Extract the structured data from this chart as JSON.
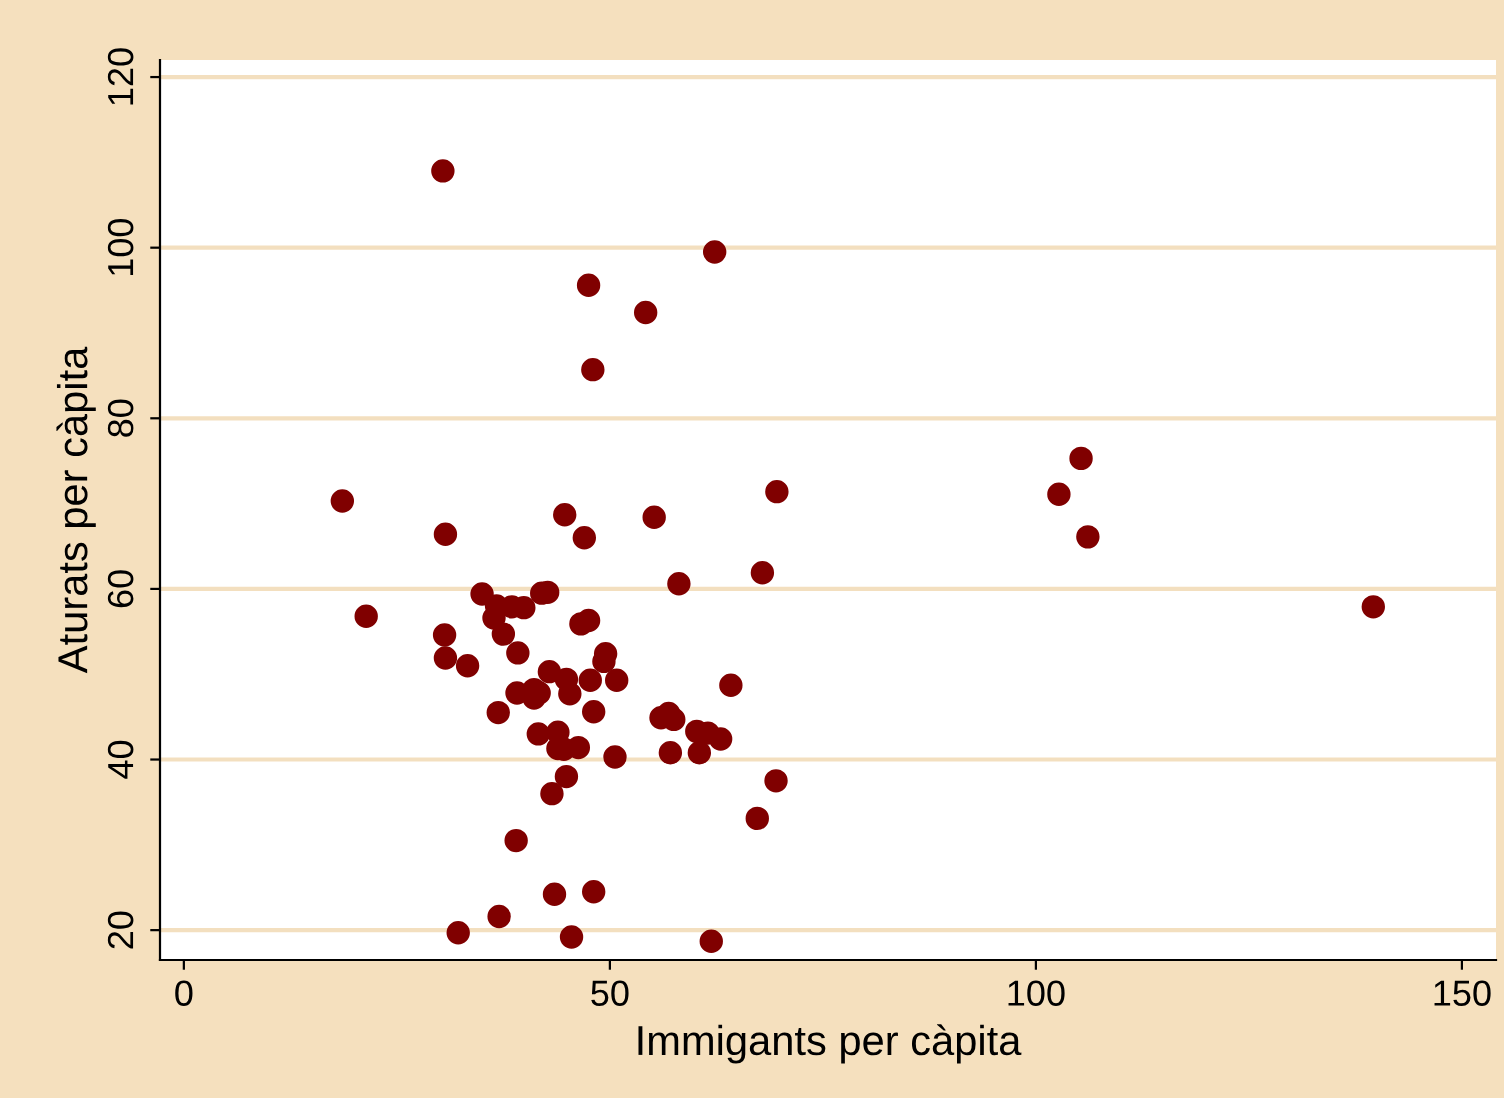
{
  "chart_data": {
    "type": "scatter",
    "xlabel": "Immigants per càpita",
    "ylabel": "Aturats per càpita",
    "x": [
      30.4,
      62.3,
      47.5,
      54.2,
      48.0,
      105.3,
      69.6,
      102.7,
      18.6,
      44.7,
      55.2,
      30.7,
      47.0,
      106.1,
      67.9,
      58.1,
      35.0,
      42.0,
      42.7,
      36.7,
      38.5,
      39.9,
      139.6,
      21.4,
      36.4,
      46.6,
      47.5,
      37.5,
      30.6,
      39.2,
      49.5,
      49.3,
      30.7,
      33.3,
      42.9,
      44.9,
      47.7,
      50.8,
      64.2,
      39.1,
      41.1,
      41.7,
      45.3,
      41.1,
      36.9,
      48.1,
      56.0,
      56.9,
      57.5,
      41.6,
      43.9,
      60.2,
      61.5,
      63.0,
      43.9,
      46.3,
      44.6,
      57.1,
      60.5,
      50.6,
      69.5,
      44.9,
      43.2,
      67.3,
      39.0,
      43.5,
      48.1,
      37.0,
      32.2,
      45.5,
      61.9
    ],
    "series": [
      {
        "color": "#800000",
        "values": [
          109,
          99.5,
          95.6,
          92.4,
          85.7,
          75.3,
          71.4,
          71.1,
          70.3,
          68.7,
          68.4,
          66.4,
          66.0,
          66.1,
          61.9,
          60.6,
          59.4,
          59.5,
          59.6,
          58.0,
          57.9,
          57.8,
          57.9,
          56.8,
          56.6,
          55.9,
          56.3,
          54.7,
          54.6,
          52.5,
          52.4,
          51.5,
          51.9,
          51.0,
          50.3,
          49.4,
          49.3,
          49.3,
          48.7,
          47.8,
          48.2,
          47.8,
          47.7,
          47.2,
          45.5,
          45.6,
          44.9,
          45.4,
          44.7,
          43.0,
          43.2,
          43.3,
          43.1,
          42.4,
          41.3,
          41.4,
          41.2,
          40.8,
          40.8,
          40.3,
          37.5,
          38.0,
          36.0,
          33.1,
          30.5,
          24.2,
          24.5,
          21.6,
          19.7,
          19.2,
          18.7
        ]
      }
    ],
    "xlim": [
      -2.8,
      154
    ],
    "ylim": [
      16.5,
      122
    ],
    "xticks": [
      0,
      50,
      100,
      150
    ],
    "yticks": [
      20,
      40,
      60,
      80,
      100,
      120
    ],
    "grid": "y",
    "marker": "circle"
  }
}
